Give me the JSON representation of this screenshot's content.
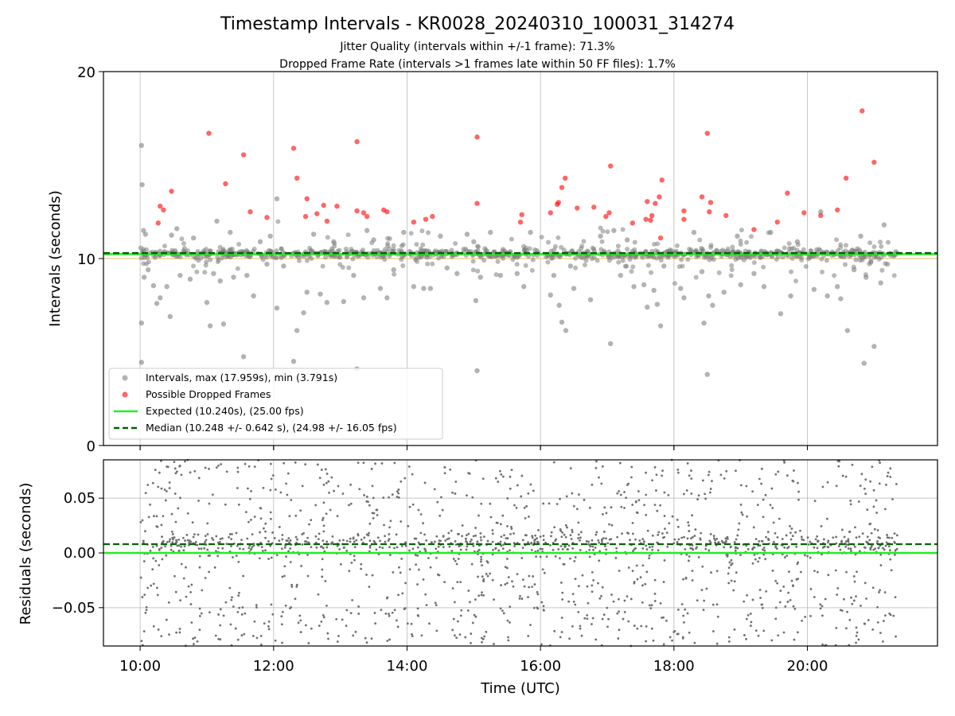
{
  "chart_data": [
    {
      "type": "scatter",
      "title": "Timestamp Intervals - KR0028_20240310_100031_314274",
      "subtitle_lines": [
        "Jitter Quality (intervals within +/-1 frame): 71.3%",
        "Dropped Frame Rate (intervals >1 frames late within 50 FF files): 1.7%"
      ],
      "ylabel": "Intervals (seconds)",
      "ylim": [
        0,
        20
      ],
      "y_ticks": [
        0,
        10,
        20
      ],
      "y_tick_labels": [
        "0",
        "10",
        "20"
      ],
      "x_range_hours": [
        9.45,
        21.95
      ],
      "x_ticks_hours": [
        10,
        12,
        14,
        16,
        18,
        20
      ],
      "x_tick_labels": [
        "10:00",
        "12:00",
        "14:00",
        "16:00",
        "18:00",
        "20:00"
      ],
      "grid": true,
      "legend_position": "lower-left",
      "colors": {
        "intervals": "#808080",
        "dropped": "#ff0000",
        "expected": "#22ee22",
        "median": "#006400",
        "reference": "#f0d090"
      },
      "series": [
        {
          "name": "Intervals, max (17.959s), min (3.791s)",
          "marker": "circle",
          "points": [
            [
              10.02,
              16.05
            ],
            [
              10.03,
              13.95
            ],
            [
              10.05,
              11.5
            ],
            [
              10.08,
              11.3
            ],
            [
              10.02,
              6.55
            ],
            [
              10.02,
              4.45
            ],
            [
              10.06,
              9.0
            ],
            [
              10.12,
              9.4
            ],
            [
              10.2,
              8.55
            ],
            [
              10.25,
              7.6
            ],
            [
              10.3,
              7.9
            ],
            [
              10.4,
              8.5
            ],
            [
              10.45,
              6.9
            ],
            [
              10.47,
              11.25
            ],
            [
              10.55,
              11.6
            ],
            [
              10.6,
              9.1
            ],
            [
              10.75,
              8.9
            ],
            [
              10.8,
              11.1
            ],
            [
              11.0,
              7.65
            ],
            [
              11.05,
              6.4
            ],
            [
              11.1,
              9.2
            ],
            [
              11.15,
              12.0
            ],
            [
              11.2,
              8.8
            ],
            [
              11.25,
              6.5
            ],
            [
              11.35,
              11.4
            ],
            [
              11.4,
              9.0
            ],
            [
              11.55,
              4.75
            ],
            [
              11.6,
              9.1
            ],
            [
              11.7,
              8.0
            ],
            [
              11.8,
              10.9
            ],
            [
              11.9,
              9.7
            ],
            [
              11.95,
              11.2
            ],
            [
              12.05,
              13.2
            ],
            [
              12.05,
              7.35
            ],
            [
              12.15,
              9.6
            ],
            [
              12.3,
              4.5
            ],
            [
              12.35,
              6.15
            ],
            [
              12.45,
              7.1
            ],
            [
              12.5,
              8.2
            ],
            [
              12.6,
              11.3
            ],
            [
              12.7,
              8.1
            ],
            [
              12.8,
              7.65
            ],
            [
              12.9,
              10.9
            ],
            [
              13.05,
              7.7
            ],
            [
              13.2,
              9.1
            ],
            [
              13.25,
              4.1
            ],
            [
              13.35,
              7.9
            ],
            [
              13.4,
              11.5
            ],
            [
              13.5,
              11.0
            ],
            [
              13.6,
              8.4
            ],
            [
              13.7,
              7.9
            ],
            [
              13.8,
              9.4
            ],
            [
              13.95,
              11.4
            ],
            [
              14.1,
              8.5
            ],
            [
              14.25,
              8.4
            ],
            [
              14.35,
              8.4
            ],
            [
              14.5,
              11.2
            ],
            [
              14.6,
              9.5
            ],
            [
              14.75,
              9.2
            ],
            [
              14.9,
              11.3
            ],
            [
              15.0,
              10.9
            ],
            [
              15.03,
              7.75
            ],
            [
              15.05,
              4.0
            ],
            [
              15.1,
              9.0
            ],
            [
              15.25,
              11.4
            ],
            [
              15.4,
              9.1
            ],
            [
              15.65,
              9.2
            ],
            [
              15.75,
              8.5
            ],
            [
              15.85,
              11.4
            ],
            [
              16.15,
              8.05
            ],
            [
              16.2,
              9.1
            ],
            [
              16.28,
              7.5
            ],
            [
              16.32,
              6.6
            ],
            [
              16.38,
              6.15
            ],
            [
              16.45,
              9.6
            ],
            [
              16.5,
              8.4
            ],
            [
              16.75,
              7.8
            ],
            [
              16.9,
              11.2
            ],
            [
              17.05,
              5.45
            ],
            [
              17.1,
              11.5
            ],
            [
              17.2,
              9.1
            ],
            [
              17.3,
              11.0
            ],
            [
              17.4,
              8.5
            ],
            [
              17.55,
              8.6
            ],
            [
              17.6,
              7.4
            ],
            [
              17.7,
              8.3
            ],
            [
              17.75,
              7.55
            ],
            [
              17.8,
              6.4
            ],
            [
              17.85,
              9.6
            ],
            [
              18.1,
              8.4
            ],
            [
              18.15,
              7.9
            ],
            [
              18.3,
              11.4
            ],
            [
              18.42,
              9.3
            ],
            [
              18.45,
              6.55
            ],
            [
              18.5,
              3.8
            ],
            [
              18.52,
              8.0
            ],
            [
              18.58,
              7.5
            ],
            [
              18.75,
              8.2
            ],
            [
              18.95,
              11.2
            ],
            [
              19.0,
              8.6
            ],
            [
              19.2,
              9.2
            ],
            [
              19.35,
              8.5
            ],
            [
              19.45,
              11.4
            ],
            [
              19.6,
              7.05
            ],
            [
              19.75,
              8.0
            ],
            [
              19.85,
              10.9
            ],
            [
              20.1,
              8.35
            ],
            [
              20.2,
              12.5
            ],
            [
              20.3,
              8.0
            ],
            [
              20.45,
              8.5
            ],
            [
              20.5,
              7.85
            ],
            [
              20.6,
              6.15
            ],
            [
              20.7,
              9.4
            ],
            [
              20.8,
              11.2
            ],
            [
              20.85,
              4.4
            ],
            [
              20.88,
              9.0
            ],
            [
              20.95,
              9.8
            ],
            [
              21.0,
              5.3
            ],
            [
              21.1,
              8.7
            ],
            [
              21.15,
              11.8
            ],
            [
              21.2,
              9.7
            ]
          ]
        },
        {
          "name": "Possible Dropped Frames",
          "marker": "circle",
          "points": [
            [
              10.3,
              12.8
            ],
            [
              10.35,
              12.6
            ],
            [
              10.27,
              11.9
            ],
            [
              10.47,
              13.6
            ],
            [
              11.03,
              16.7
            ],
            [
              11.28,
              14.0
            ],
            [
              11.55,
              15.55
            ],
            [
              11.65,
              12.5
            ],
            [
              11.9,
              12.2
            ],
            [
              12.3,
              15.9
            ],
            [
              12.35,
              14.3
            ],
            [
              12.48,
              12.25
            ],
            [
              12.5,
              13.2
            ],
            [
              12.65,
              12.4
            ],
            [
              12.75,
              12.85
            ],
            [
              12.8,
              12.0
            ],
            [
              12.95,
              12.8
            ],
            [
              13.25,
              16.25
            ],
            [
              13.25,
              12.55
            ],
            [
              13.35,
              12.45
            ],
            [
              13.4,
              12.25
            ],
            [
              13.65,
              12.6
            ],
            [
              13.7,
              12.5
            ],
            [
              14.1,
              11.95
            ],
            [
              14.28,
              12.1
            ],
            [
              14.38,
              12.25
            ],
            [
              15.05,
              16.5
            ],
            [
              15.05,
              12.95
            ],
            [
              15.7,
              11.95
            ],
            [
              15.72,
              12.35
            ],
            [
              16.15,
              12.45
            ],
            [
              16.25,
              12.9
            ],
            [
              16.27,
              13.0
            ],
            [
              16.32,
              13.8
            ],
            [
              16.37,
              14.3
            ],
            [
              16.55,
              12.7
            ],
            [
              16.8,
              12.75
            ],
            [
              16.98,
              12.25
            ],
            [
              17.03,
              12.45
            ],
            [
              17.05,
              14.95
            ],
            [
              17.38,
              11.9
            ],
            [
              17.58,
              12.1
            ],
            [
              17.6,
              13.05
            ],
            [
              17.65,
              12.05
            ],
            [
              17.67,
              12.3
            ],
            [
              17.72,
              12.95
            ],
            [
              17.78,
              13.3
            ],
            [
              17.8,
              11.1
            ],
            [
              17.82,
              14.2
            ],
            [
              18.15,
              12.55
            ],
            [
              18.15,
              12.1
            ],
            [
              18.42,
              13.3
            ],
            [
              18.5,
              16.7
            ],
            [
              18.53,
              12.5
            ],
            [
              18.55,
              13.0
            ],
            [
              18.78,
              12.3
            ],
            [
              19.2,
              11.55
            ],
            [
              19.55,
              11.95
            ],
            [
              19.7,
              13.5
            ],
            [
              19.95,
              12.45
            ],
            [
              20.2,
              12.3
            ],
            [
              20.45,
              12.6
            ],
            [
              20.58,
              14.3
            ],
            [
              20.82,
              17.9
            ],
            [
              21.0,
              15.15
            ]
          ]
        },
        {
          "name": "Expected (10.240s), (25.00 fps)",
          "marker": "line",
          "value": 10.24
        },
        {
          "name": "Median (10.248 +/- 0.642 s), (24.98 +/- 16.05 fps)",
          "marker": "dashed-line",
          "value": 10.248
        }
      ]
    },
    {
      "type": "scatter",
      "xlabel": "Time (UTC)",
      "ylabel": "Residuals (seconds)",
      "ylim": [
        -0.085,
        0.085
      ],
      "y_ticks": [
        -0.05,
        0.0,
        0.05
      ],
      "y_tick_labels": [
        "−0.05",
        "0.00",
        "0.05"
      ],
      "x_range_hours": [
        9.45,
        21.95
      ],
      "x_ticks_hours": [
        10,
        12,
        14,
        16,
        18,
        20
      ],
      "x_tick_labels": [
        "10:00",
        "12:00",
        "14:00",
        "16:00",
        "18:00",
        "20:00"
      ],
      "grid": true,
      "reference_lines": {
        "expected": 0.0,
        "median": 0.008
      },
      "residual_band": {
        "x_range_hours": [
          10.0,
          21.35
        ],
        "spread": 0.085
      }
    }
  ]
}
